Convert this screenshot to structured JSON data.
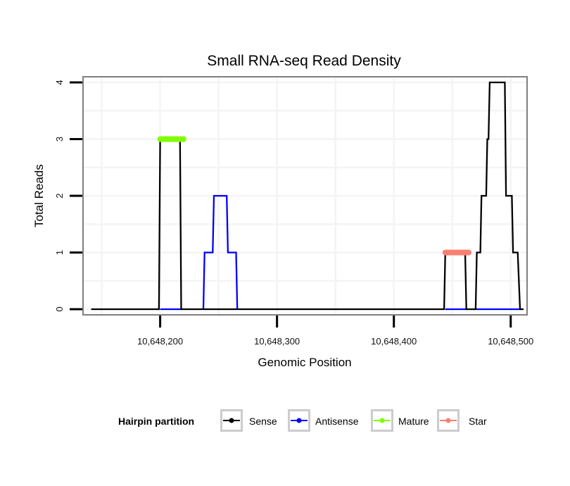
{
  "chart_data": {
    "type": "line",
    "title": "Small RNA-seq Read Density",
    "xlabel": "Genomic Position",
    "ylabel": "Total Reads",
    "xlim": [
      10648134,
      10648514
    ],
    "ylim": [
      -0.1,
      4.1
    ],
    "x_ticks": [
      10648200,
      10648300,
      10648400,
      10648500
    ],
    "x_tick_labels": [
      "10,648,200",
      "10,648,300",
      "10,648,400",
      "10,648,500"
    ],
    "y_ticks": [
      0,
      1,
      2,
      3,
      4
    ],
    "y_tick_labels": [
      "0",
      "1",
      "2",
      "3",
      "4"
    ],
    "grid": true,
    "legend": {
      "title": "Hairpin partition",
      "position": "bottom",
      "entries": [
        {
          "label": "Sense",
          "color": "#000000"
        },
        {
          "label": "Antisense",
          "color": "#0000ff"
        },
        {
          "label": "Mature",
          "color": "#7fff00"
        },
        {
          "label": "Star",
          "color": "#fa8072"
        }
      ]
    },
    "series": [
      {
        "name": "Antisense",
        "color": "#0000ff",
        "points": [
          [
            10648200,
            0
          ],
          [
            10648218,
            0
          ],
          [
            10648237,
            0
          ],
          [
            10648238,
            1
          ],
          [
            10648245,
            1
          ],
          [
            10648246,
            2
          ],
          [
            10648257,
            2
          ],
          [
            10648258,
            1
          ],
          [
            10648265,
            1
          ],
          [
            10648266,
            0
          ],
          [
            10648444,
            0
          ],
          [
            10648462,
            0
          ],
          [
            10648470,
            0
          ],
          [
            10648509,
            0
          ]
        ],
        "segments": [
          [
            [
              10648200,
              0
            ],
            [
              10648218,
              0
            ]
          ],
          [
            [
              10648237,
              0
            ],
            [
              10648238,
              1
            ],
            [
              10648245,
              1
            ],
            [
              10648246,
              2
            ],
            [
              10648257,
              2
            ],
            [
              10648258,
              1
            ],
            [
              10648265,
              1
            ],
            [
              10648266,
              0
            ]
          ],
          [
            [
              10648444,
              0
            ],
            [
              10648462,
              0
            ]
          ],
          [
            [
              10648470,
              0
            ],
            [
              10648509,
              0
            ]
          ]
        ]
      },
      {
        "name": "Sense",
        "color": "#000000",
        "segments": [
          [
            [
              10648141,
              0
            ],
            [
              10648199,
              0
            ],
            [
              10648200,
              3
            ],
            [
              10648217,
              3
            ],
            [
              10648218,
              0
            ],
            [
              10648237,
              0
            ]
          ],
          [
            [
              10648237,
              0
            ],
            [
              10648266,
              0
            ]
          ],
          [
            [
              10648266,
              0
            ],
            [
              10648443,
              0
            ],
            [
              10648444,
              1
            ],
            [
              10648461,
              1
            ],
            [
              10648462,
              0
            ],
            [
              10648470,
              0
            ],
            [
              10648471,
              1
            ],
            [
              10648474,
              1
            ],
            [
              10648475,
              2
            ],
            [
              10648479,
              2
            ],
            [
              10648480,
              3
            ],
            [
              10648481,
              3
            ],
            [
              10648482,
              4
            ],
            [
              10648495,
              4
            ],
            [
              10648496,
              2
            ],
            [
              10648501,
              2
            ],
            [
              10648502,
              1
            ],
            [
              10648506,
              1
            ],
            [
              10648508,
              0
            ],
            [
              10648511,
              0
            ]
          ]
        ]
      },
      {
        "name": "Mature",
        "color": "#7fff00",
        "segments": [
          [
            [
              10648200,
              3
            ],
            [
              10648220,
              3
            ]
          ]
        ]
      },
      {
        "name": "Star",
        "color": "#fa8072",
        "segments": [
          [
            [
              10648444,
              1
            ],
            [
              10648464,
              1
            ]
          ]
        ]
      }
    ]
  }
}
